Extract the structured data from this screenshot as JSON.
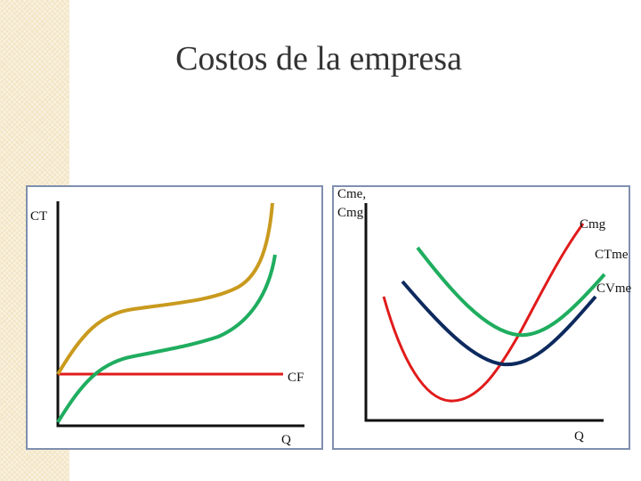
{
  "title": "Costos de la empresa",
  "left_diagram": {
    "y_label": "CT",
    "fixed_cost_label": "CF",
    "x_label": "Q"
  },
  "right_diagram": {
    "y_label_line1": "Cme,",
    "y_label_line2": "Cmg",
    "mc_label": "Cmg",
    "atc_label": "CTme",
    "avc_label": "CVme",
    "x_label": "Q"
  },
  "colors": {
    "total_cost": "#c99a1e",
    "variable_cost": "#1fad5f",
    "fixed_cost": "#e11b1b",
    "marginal_cost": "#e11b1b",
    "average_total_cost": "#1fad5f",
    "average_variable_cost": "#0d2a5e",
    "axis": "#111111",
    "frame": "#7f8fae"
  }
}
